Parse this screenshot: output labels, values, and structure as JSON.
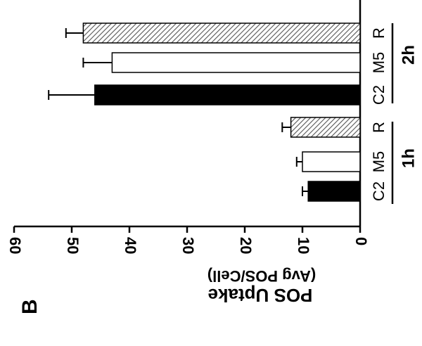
{
  "panel": {
    "letter": "B"
  },
  "chart_data": {
    "type": "bar",
    "orientation": "horizontal",
    "ylabel": "POS Uptake",
    "ylabel_units": "(Avg POS/Cell)",
    "value_ticks": [
      0,
      10,
      20,
      30,
      40,
      50,
      60
    ],
    "ylim": [
      0,
      60
    ],
    "grid": false,
    "groups": [
      {
        "label": "1h",
        "categories": [
          "C2",
          "M5",
          "R"
        ],
        "values": [
          9,
          10,
          12
        ],
        "errors": [
          1,
          1,
          1.5
        ]
      },
      {
        "label": "2h",
        "categories": [
          "C2",
          "M5",
          "R"
        ],
        "values": [
          46,
          43,
          48
        ],
        "errors": [
          8,
          5,
          3
        ]
      }
    ],
    "category_styles": {
      "C2": "solid-black",
      "M5": "white",
      "R": "hatched"
    },
    "colors": {
      "C2": "#000000",
      "M5": "#ffffff",
      "R_hatch": "#555555"
    }
  }
}
